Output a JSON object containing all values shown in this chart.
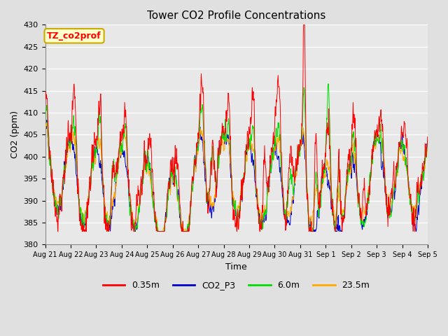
{
  "title": "Tower CO2 Profile Concentrations",
  "xlabel": "Time",
  "ylabel": "CO2 (ppm)",
  "ylim": [
    380,
    430
  ],
  "xlim": [
    0,
    15
  ],
  "background_color": "#e0e0e0",
  "plot_bg_color": "#e8e8e8",
  "grid_color": "white",
  "annotation_text": "TZ_co2prof",
  "annotation_bg": "#ffffcc",
  "annotation_border": "#ccaa00",
  "series": [
    {
      "label": "0.35m",
      "color": "#ff0000"
    },
    {
      "label": "CO2_P3",
      "color": "#0000cc"
    },
    {
      "label": "6.0m",
      "color": "#00dd00"
    },
    {
      "label": "23.5m",
      "color": "#ffaa00"
    }
  ],
  "xtick_labels": [
    "Aug 21",
    "Aug 22",
    "Aug 23",
    "Aug 24",
    "Aug 25",
    "Aug 26",
    "Aug 27",
    "Aug 28",
    "Aug 29",
    "Aug 30",
    "Aug 31",
    "Sep 1",
    "Sep 2",
    "Sep 3",
    "Sep 4",
    "Sep 5"
  ],
  "xtick_positions": [
    0,
    1,
    2,
    3,
    4,
    5,
    6,
    7,
    8,
    9,
    10,
    11,
    12,
    13,
    14,
    15
  ],
  "ytick_positions": [
    380,
    385,
    390,
    395,
    400,
    405,
    410,
    415,
    420,
    425,
    430
  ],
  "seed": 42
}
